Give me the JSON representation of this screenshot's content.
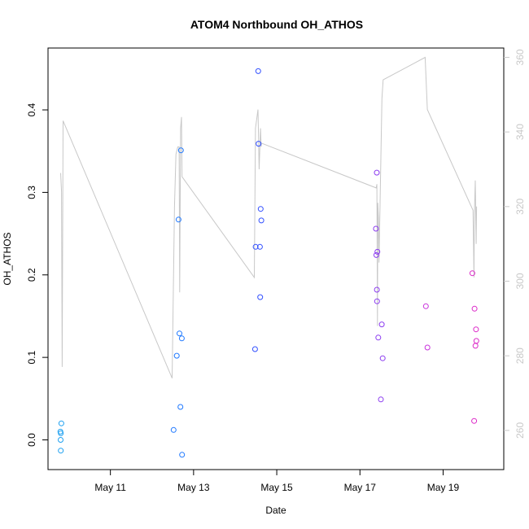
{
  "chart_data": {
    "type": "scatter",
    "title": "ATOM4 Northbound OH_ATHOS",
    "xlabel": "Date",
    "ylabel": "OH_ATHOS",
    "xlim": [
      "2016-05-09T12:00",
      "2016-05-20T11:00"
    ],
    "ylim": [
      -0.036,
      0.475
    ],
    "y2lim": [
      249.5,
      362.5
    ],
    "x_ticks": [
      {
        "date": "2016-05-11",
        "label": "May 11"
      },
      {
        "date": "2016-05-13",
        "label": "May 13"
      },
      {
        "date": "2016-05-15",
        "label": "May 15"
      },
      {
        "date": "2016-05-17",
        "label": "May 17"
      },
      {
        "date": "2016-05-19",
        "label": "May 19"
      }
    ],
    "y_ticks": [
      "0.0",
      "0.1",
      "0.2",
      "0.3",
      "0.4"
    ],
    "y2_ticks": [
      "260",
      "280",
      "300",
      "320",
      "340",
      "360"
    ],
    "points": [
      {
        "x": "2016-05-09T19:07",
        "y": 0.01,
        "color": "#1ea0f0"
      },
      {
        "x": "2016-05-09T19:22",
        "y": 0.008,
        "color": "#1ea0f0"
      },
      {
        "x": "2016-05-09T19:41",
        "y": 0.02,
        "color": "#1ea0f0"
      },
      {
        "x": "2016-05-09T19:17",
        "y": 0.0,
        "color": "#1ea0f0"
      },
      {
        "x": "2016-05-09T19:22",
        "y": -0.013,
        "color": "#1ea0f0"
      },
      {
        "x": "2016-05-12T12:28",
        "y": 0.012,
        "color": "#1e78ff"
      },
      {
        "x": "2016-05-12T14:17",
        "y": 0.102,
        "color": "#1e78ff"
      },
      {
        "x": "2016-05-12T15:19",
        "y": 0.267,
        "color": "#1e78ff"
      },
      {
        "x": "2016-05-12T15:50",
        "y": 0.129,
        "color": "#1e78ff"
      },
      {
        "x": "2016-05-12T16:26",
        "y": 0.04,
        "color": "#1e78ff"
      },
      {
        "x": "2016-05-12T16:41",
        "y": 0.351,
        "color": "#1e78ff"
      },
      {
        "x": "2016-05-12T17:12",
        "y": 0.123,
        "color": "#1e78ff"
      },
      {
        "x": "2016-05-12T17:22",
        "y": -0.018,
        "color": "#1e78ff"
      },
      {
        "x": "2016-05-14T11:28",
        "y": 0.11,
        "color": "#3250ff"
      },
      {
        "x": "2016-05-14T11:49",
        "y": 0.234,
        "color": "#3250ff"
      },
      {
        "x": "2016-05-14T13:19",
        "y": 0.447,
        "color": "#3250ff"
      },
      {
        "x": "2016-05-14T13:29",
        "y": 0.359,
        "color": "#3250ff"
      },
      {
        "x": "2016-05-14T14:17",
        "y": 0.234,
        "color": "#3250ff"
      },
      {
        "x": "2016-05-14T14:27",
        "y": 0.173,
        "color": "#3250ff"
      },
      {
        "x": "2016-05-14T14:43",
        "y": 0.28,
        "color": "#3250ff"
      },
      {
        "x": "2016-05-14T15:05",
        "y": 0.266,
        "color": "#3250ff"
      },
      {
        "x": "2016-05-17T09:12",
        "y": 0.256,
        "color": "#8c3cf0"
      },
      {
        "x": "2016-05-17T09:27",
        "y": 0.224,
        "color": "#8c3cf0"
      },
      {
        "x": "2016-05-17T09:43",
        "y": 0.324,
        "color": "#8c3cf0"
      },
      {
        "x": "2016-05-17T09:48",
        "y": 0.182,
        "color": "#8c3cf0"
      },
      {
        "x": "2016-05-17T09:53",
        "y": 0.168,
        "color": "#8c3cf0"
      },
      {
        "x": "2016-05-17T10:03",
        "y": 0.228,
        "color": "#8c3cf0"
      },
      {
        "x": "2016-05-17T10:34",
        "y": 0.124,
        "color": "#8c3cf0"
      },
      {
        "x": "2016-05-17T12:06",
        "y": 0.049,
        "color": "#8c3cf0"
      },
      {
        "x": "2016-05-17T12:37",
        "y": 0.14,
        "color": "#8c3cf0"
      },
      {
        "x": "2016-05-17T13:08",
        "y": 0.099,
        "color": "#8c3cf0"
      },
      {
        "x": "2016-05-18T14:02",
        "y": 0.162,
        "color": "#c832dc"
      },
      {
        "x": "2016-05-18T14:58",
        "y": 0.112,
        "color": "#c832dc"
      },
      {
        "x": "2016-05-19T16:51",
        "y": 0.202,
        "color": "#dc28c8"
      },
      {
        "x": "2016-05-19T17:53",
        "y": 0.023,
        "color": "#dc28c8"
      },
      {
        "x": "2016-05-19T18:08",
        "y": 0.159,
        "color": "#dc28c8"
      },
      {
        "x": "2016-05-19T18:39",
        "y": 0.114,
        "color": "#dc28c8"
      },
      {
        "x": "2016-05-19T19:00",
        "y": 0.134,
        "color": "#dc28c8"
      },
      {
        "x": "2016-05-19T19:10",
        "y": 0.12,
        "color": "#dc28c8"
      }
    ],
    "secondary_line": {
      "axis": "right",
      "color": "#c8c8c8",
      "points": [
        {
          "x": "2016-05-09T19:17",
          "y": 329
        },
        {
          "x": "2016-05-09T19:48",
          "y": 324
        },
        {
          "x": "2016-05-09T20:09",
          "y": 277
        },
        {
          "x": "2016-05-09T20:40",
          "y": 343
        },
        {
          "x": "2016-05-12T11:36",
          "y": 274
        },
        {
          "x": "2016-05-12T12:58",
          "y": 320
        },
        {
          "x": "2016-05-12T13:50",
          "y": 334
        },
        {
          "x": "2016-05-12T14:53",
          "y": 336
        },
        {
          "x": "2016-05-12T15:39",
          "y": 336
        },
        {
          "x": "2016-05-12T16:00",
          "y": 297
        },
        {
          "x": "2016-05-12T16:31",
          "y": 341
        },
        {
          "x": "2016-05-12T17:02",
          "y": 344
        },
        {
          "x": "2016-05-12T17:22",
          "y": 328
        },
        {
          "x": "2016-05-14T11:02",
          "y": 301
        },
        {
          "x": "2016-05-14T11:43",
          "y": 341
        },
        {
          "x": "2016-05-14T13:09",
          "y": 346
        },
        {
          "x": "2016-05-14T13:50",
          "y": 330
        },
        {
          "x": "2016-05-14T14:37",
          "y": 341
        },
        {
          "x": "2016-05-14T15:00",
          "y": 336
        },
        {
          "x": "2016-05-14T15:10",
          "y": 337
        },
        {
          "x": "2016-05-17T09:22",
          "y": 325
        },
        {
          "x": "2016-05-17T09:48",
          "y": 326
        },
        {
          "x": "2016-05-17T10:08",
          "y": 288
        },
        {
          "x": "2016-05-17T10:19",
          "y": 321
        },
        {
          "x": "2016-05-17T10:40",
          "y": 317
        },
        {
          "x": "2016-05-17T11:00",
          "y": 305
        },
        {
          "x": "2016-05-17T12:42",
          "y": 349
        },
        {
          "x": "2016-05-17T13:24",
          "y": 354
        },
        {
          "x": "2016-05-18T13:37",
          "y": 360
        },
        {
          "x": "2016-05-18T14:53",
          "y": 346
        },
        {
          "x": "2016-05-19T17:15",
          "y": 319
        },
        {
          "x": "2016-05-19T17:48",
          "y": 301
        },
        {
          "x": "2016-05-19T18:04",
          "y": 318
        },
        {
          "x": "2016-05-19T18:35",
          "y": 327
        },
        {
          "x": "2016-05-19T19:05",
          "y": 310
        },
        {
          "x": "2016-05-19T19:20",
          "y": 320
        }
      ]
    }
  }
}
